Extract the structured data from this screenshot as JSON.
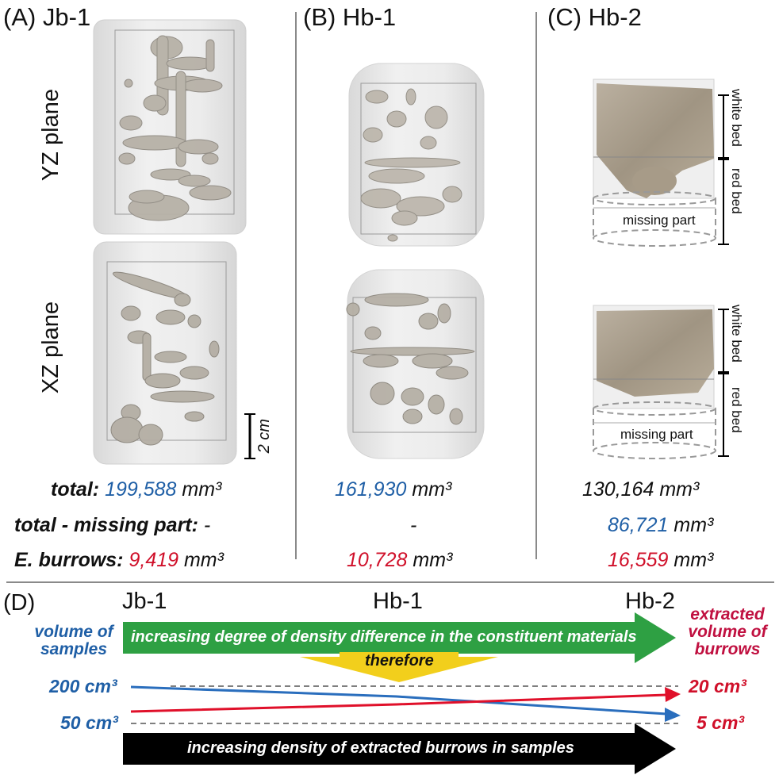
{
  "panels": {
    "a": {
      "title": "(A) Jb-1",
      "yz": "YZ plane",
      "xz": "XZ plane",
      "scale": "2 cm",
      "total_label": "total:",
      "total_value": "199,588",
      "unit": "mm³",
      "minus_label": "total - missing part:",
      "minus_value": "-",
      "burrows_label": "E. burrows:",
      "burrows_value": "9,419"
    },
    "b": {
      "title": "(B) Hb-1",
      "total_value": "161,930",
      "minus_value": "-",
      "burrows_value": "10,728",
      "unit": "mm³"
    },
    "c": {
      "title": "(C) Hb-2",
      "white_bed": "white bed",
      "red_bed": "red bed",
      "missing": "missing part",
      "total_value": "130,164",
      "minus_value": "86,721",
      "burrows_value": "16,559",
      "unit": "mm³"
    }
  },
  "panel_d": {
    "label": "(D)",
    "samples": [
      "Jb-1",
      "Hb-1",
      "Hb-2"
    ],
    "left_axis_title": "volume of samples",
    "right_axis_title": "extracted volume of burrows",
    "green_arrow": "increasing degree of density difference in the constituent materials",
    "therefore": "therefore",
    "black_arrow": "increasing density of extracted burrows in samples",
    "left_top": "200 cm³",
    "left_bottom": "50 cm³",
    "right_top": "20 cm³",
    "right_bottom": "5 cm³",
    "colors": {
      "green": "#2ea043",
      "yellow": "#f2cf1c",
      "blue": "#2a6ebd",
      "red": "#e0102a"
    }
  }
}
